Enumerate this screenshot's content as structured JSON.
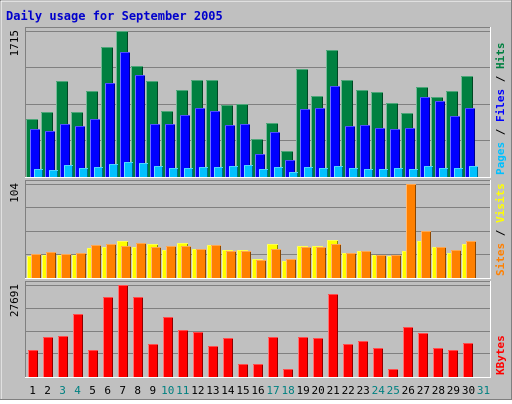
{
  "title": "Daily usage for September 2005",
  "colors": {
    "background": "#c0c0c0",
    "title": "#0000cc",
    "hits": "#008040",
    "files": "#0000ff",
    "pages": "#00c0ff",
    "visits": "#ffff00",
    "sites": "#ff8000",
    "kbytes": "#ff0000",
    "weekend_label": "#008080",
    "weekday_label": "#000000"
  },
  "chart_data": [
    {
      "type": "bar",
      "name": "hits-files-pages",
      "y_max_label": "1715",
      "ylim": [
        0,
        1715
      ],
      "legend": [
        {
          "label": "Pages",
          "color": "#00c0ff"
        },
        {
          "label": "Files",
          "color": "#0000ff"
        },
        {
          "label": "Hits",
          "color": "#008040"
        }
      ],
      "series": [
        {
          "name": "Hits",
          "values": [
            670,
            760,
            1120,
            760,
            1010,
            1520,
            1715,
            1300,
            1120,
            770,
            1020,
            1140,
            1130,
            840,
            850,
            440,
            630,
            300,
            1270,
            950,
            1490,
            1130,
            1020,
            990,
            860,
            740,
            1050,
            940,
            1000,
            1180
          ]
        },
        {
          "name": "Files",
          "values": [
            560,
            530,
            620,
            590,
            680,
            1100,
            1470,
            1190,
            610,
            620,
            720,
            800,
            770,
            600,
            610,
            260,
            520,
            190,
            790,
            800,
            1060,
            590,
            600,
            570,
            550,
            570,
            940,
            890,
            710,
            810
          ]
        },
        {
          "name": "Pages",
          "values": [
            80,
            70,
            130,
            90,
            110,
            140,
            160,
            150,
            120,
            100,
            90,
            110,
            110,
            120,
            130,
            80,
            110,
            50,
            110,
            100,
            120,
            90,
            80,
            80,
            90,
            80,
            120,
            100,
            90,
            120
          ]
        }
      ]
    },
    {
      "type": "bar",
      "name": "visits-sites",
      "y_max_label": "104",
      "ylim": [
        0,
        104
      ],
      "legend": [
        {
          "label": "Sites",
          "color": "#ff8000"
        },
        {
          "label": "Visits",
          "color": "#ffff00"
        }
      ],
      "series": [
        {
          "name": "Visits",
          "values": [
            24,
            25,
            25,
            25,
            32,
            34,
            40,
            34,
            37,
            30,
            38,
            31,
            36,
            30,
            30,
            20,
            37,
            18,
            35,
            35,
            41,
            27,
            29,
            25,
            23,
            29,
            40,
            33,
            27,
            37
          ]
        },
        {
          "name": "Sites",
          "values": [
            26,
            28,
            26,
            27,
            36,
            37,
            35,
            38,
            34,
            35,
            35,
            31,
            36,
            29,
            29,
            19,
            31,
            20,
            34,
            33,
            37,
            27,
            29,
            25,
            25,
            104,
            52,
            34,
            30,
            40
          ]
        }
      ]
    },
    {
      "type": "bar",
      "name": "kbytes",
      "y_max_label": "27691",
      "ylim": [
        0,
        27691
      ],
      "legend": [
        {
          "label": "KBytes",
          "color": "#ff0000"
        }
      ],
      "series": [
        {
          "name": "KBytes",
          "values": [
            8000,
            12000,
            12300,
            19000,
            7900,
            24000,
            27691,
            24000,
            9600,
            18000,
            14000,
            13500,
            9000,
            11500,
            3800,
            3700,
            12000,
            2100,
            12000,
            11500,
            25000,
            9600,
            10600,
            8400,
            2100,
            15000,
            13000,
            8500,
            8000,
            10000
          ]
        }
      ]
    }
  ],
  "x_labels": [
    "1",
    "2",
    "3",
    "4",
    "5",
    "6",
    "7",
    "8",
    "9",
    "10",
    "11",
    "12",
    "13",
    "14",
    "15",
    "16",
    "17",
    "18",
    "19",
    "20",
    "21",
    "22",
    "23",
    "24",
    "25",
    "26",
    "27",
    "28",
    "29",
    "30",
    "31"
  ],
  "weekend_days": [
    3,
    4,
    10,
    11,
    17,
    18,
    24,
    25,
    31
  ]
}
